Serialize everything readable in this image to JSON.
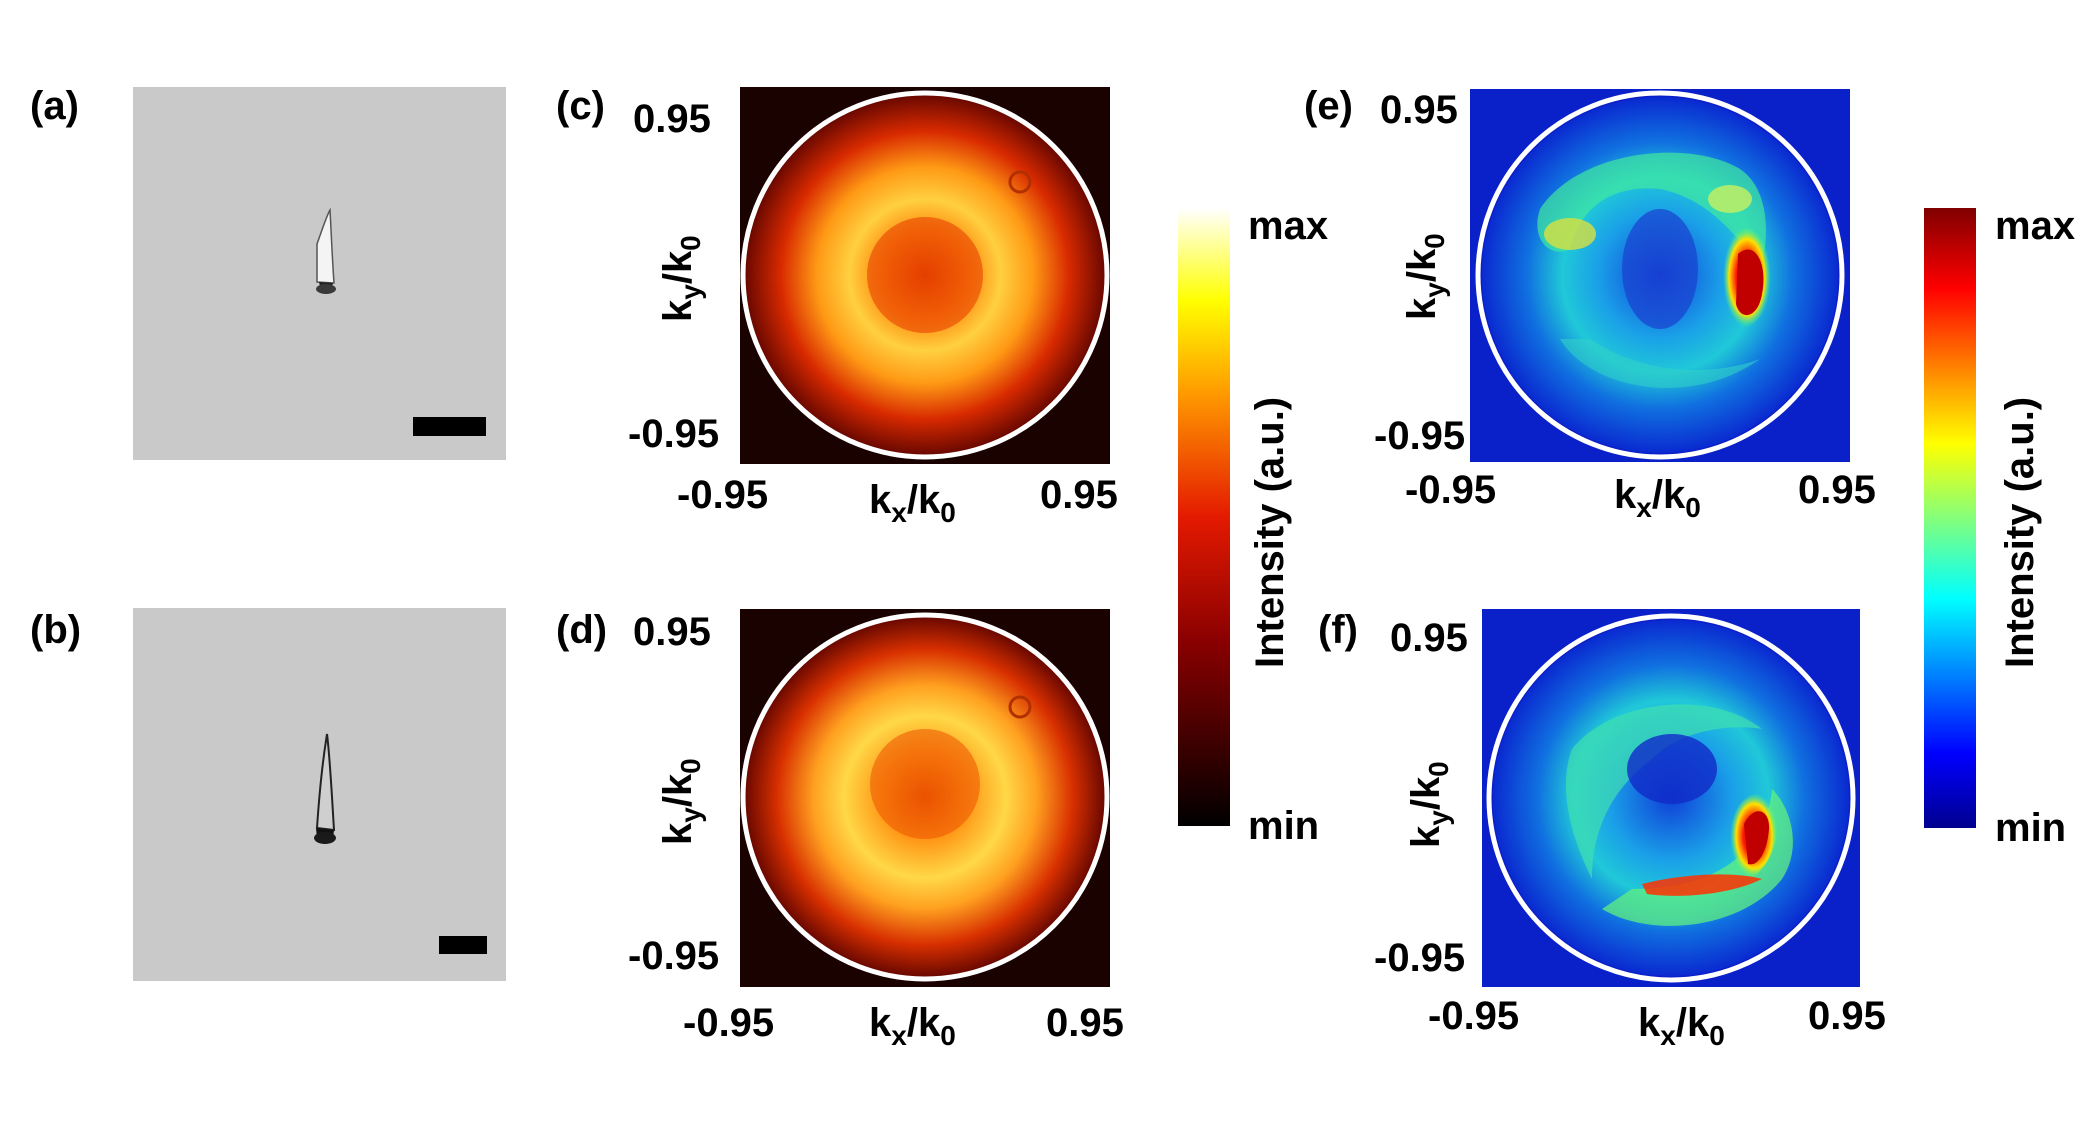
{
  "panels": {
    "a": {
      "label": "(a)"
    },
    "b": {
      "label": "(b)"
    },
    "c": {
      "label": "(c)",
      "tick_min": "-0.95",
      "tick_max": "0.95",
      "xlabel": "k",
      "xsub": "x",
      "xden": "/k",
      "xden_sub": "0",
      "ylabel": "k",
      "ysub": "y",
      "yden": "/k",
      "yden_sub": "0"
    },
    "d": {
      "label": "(d)",
      "tick_min": "-0.95",
      "tick_max": "0.95",
      "xlabel": "k",
      "xsub": "x",
      "xden": "/k",
      "xden_sub": "0",
      "ylabel": "k",
      "ysub": "y",
      "yden": "/k",
      "yden_sub": "0"
    },
    "e": {
      "label": "(e)",
      "tick_min": "-0.95",
      "tick_max": "0.95",
      "xlabel": "k",
      "xsub": "x",
      "xden": "/k",
      "xden_sub": "0",
      "ylabel": "k",
      "ysub": "y",
      "yden": "/k",
      "yden_sub": "0"
    },
    "f": {
      "label": "(f)",
      "tick_min": "-0.95",
      "tick_max": "0.95",
      "xlabel": "k",
      "xsub": "x",
      "xden": "/k",
      "xden_sub": "0",
      "ylabel": "k",
      "ysub": "y",
      "yden": "/k",
      "yden_sub": "0"
    }
  },
  "colorbar_hot": {
    "max": "max",
    "min": "min",
    "title": "Intensity (a.u.)"
  },
  "colorbar_jet": {
    "max": "max",
    "min": "min",
    "title": "Intensity (a.u.)"
  },
  "colors": {
    "white": "#ffffff",
    "black": "#000000"
  }
}
